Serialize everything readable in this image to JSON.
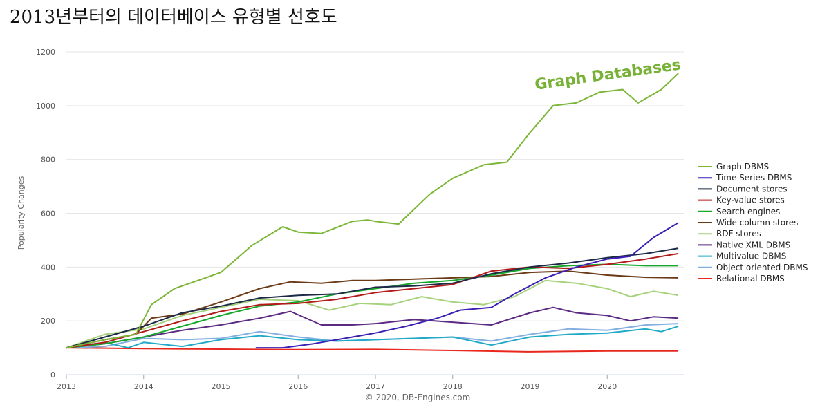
{
  "title": "2013년부터의 데이터베이스 유형별 선호도",
  "chart_data": {
    "type": "line",
    "title": "2013년부터의 데이터베이스 유형별 선호도",
    "xlabel": "",
    "ylabel": "Popularity Changes",
    "xlim": [
      2013,
      2021
    ],
    "ylim": [
      0,
      1200
    ],
    "x_ticks": [
      "2013",
      "2014",
      "2015",
      "2016",
      "2017",
      "2018",
      "2019",
      "2020"
    ],
    "y_ticks": [
      0,
      200,
      400,
      600,
      800,
      1000,
      1200
    ],
    "grid": "horizontal",
    "legend_position": "right",
    "annotation": "Graph Databases",
    "credit": "© 2020, DB-Engines.com",
    "series": [
      {
        "name": "Graph DBMS",
        "color": "#7cb637",
        "x": [
          2013,
          2013.5,
          2013.9,
          2014.1,
          2014.4,
          2014.8,
          2015.0,
          2015.4,
          2015.8,
          2016.0,
          2016.3,
          2016.7,
          2016.9,
          2017.0,
          2017.3,
          2017.7,
          2018.0,
          2018.4,
          2018.7,
          2019.0,
          2019.3,
          2019.6,
          2019.9,
          2020.2,
          2020.4,
          2020.7,
          2020.92
        ],
        "y": [
          100,
          130,
          150,
          260,
          320,
          360,
          380,
          480,
          550,
          530,
          525,
          570,
          575,
          570,
          560,
          670,
          730,
          780,
          790,
          900,
          1000,
          1010,
          1050,
          1060,
          1010,
          1060,
          1120
        ]
      },
      {
        "name": "Time Series DBMS",
        "color": "#3b1fb5",
        "x": [
          2015.45,
          2015.8,
          2016.2,
          2016.6,
          2017.0,
          2017.4,
          2017.8,
          2018.1,
          2018.5,
          2018.8,
          2019.2,
          2019.6,
          2020.0,
          2020.3,
          2020.6,
          2020.92
        ],
        "y": [
          100,
          100,
          115,
          135,
          155,
          180,
          210,
          240,
          250,
          300,
          360,
          400,
          430,
          440,
          510,
          565
        ]
      },
      {
        "name": "Document stores",
        "color": "#1c2a48",
        "x": [
          2013,
          2013.5,
          2014.0,
          2014.5,
          2015.0,
          2015.5,
          2016.0,
          2016.5,
          2017.0,
          2017.5,
          2018.0,
          2018.5,
          2019.0,
          2019.5,
          2020.0,
          2020.5,
          2020.92
        ],
        "y": [
          100,
          140,
          180,
          230,
          255,
          285,
          295,
          300,
          325,
          330,
          340,
          375,
          400,
          415,
          435,
          450,
          470
        ]
      },
      {
        "name": "Key-value stores",
        "color": "#b31b1b",
        "x": [
          2013,
          2013.5,
          2014.0,
          2014.5,
          2015.0,
          2015.5,
          2016.0,
          2016.5,
          2017.0,
          2017.5,
          2018.0,
          2018.5,
          2019.0,
          2019.5,
          2020.0,
          2020.5,
          2020.92
        ],
        "y": [
          100,
          120,
          160,
          200,
          235,
          260,
          265,
          280,
          305,
          320,
          335,
          385,
          400,
          395,
          410,
          430,
          450
        ]
      },
      {
        "name": "Search engines",
        "color": "#15a82b",
        "x": [
          2013,
          2013.5,
          2014.0,
          2014.5,
          2015.0,
          2015.5,
          2016.0,
          2016.5,
          2017.0,
          2017.5,
          2018.0,
          2018.5,
          2019.0,
          2019.5,
          2020.0,
          2020.5,
          2020.92
        ],
        "y": [
          100,
          115,
          140,
          180,
          220,
          255,
          270,
          300,
          320,
          340,
          350,
          370,
          395,
          405,
          410,
          405,
          405
        ]
      },
      {
        "name": "Wide column stores",
        "color": "#6b3a17",
        "x": [
          2013,
          2013.5,
          2013.9,
          2014.1,
          2014.5,
          2015.0,
          2015.5,
          2015.9,
          2016.3,
          2016.7,
          2017.0,
          2017.5,
          2018.0,
          2018.5,
          2019.0,
          2019.5,
          2020.0,
          2020.5,
          2020.92
        ],
        "y": [
          100,
          130,
          150,
          210,
          225,
          270,
          320,
          345,
          340,
          350,
          350,
          355,
          360,
          365,
          380,
          385,
          370,
          362,
          360
        ]
      },
      {
        "name": "RDF stores",
        "color": "#a7d27d",
        "x": [
          2013,
          2013.5,
          2014.0,
          2014.5,
          2015.0,
          2015.5,
          2016.0,
          2016.4,
          2016.8,
          2017.2,
          2017.6,
          2018.0,
          2018.4,
          2018.8,
          2019.2,
          2019.6,
          2020.0,
          2020.3,
          2020.6,
          2020.92
        ],
        "y": [
          100,
          150,
          170,
          220,
          250,
          280,
          275,
          240,
          265,
          260,
          290,
          270,
          260,
          290,
          350,
          340,
          320,
          290,
          310,
          295
        ]
      },
      {
        "name": "Native XML DBMS",
        "color": "#5b2a82",
        "x": [
          2013,
          2013.5,
          2014.0,
          2014.5,
          2015.0,
          2015.5,
          2015.9,
          2016.3,
          2016.7,
          2017.0,
          2017.5,
          2018.0,
          2018.5,
          2019.0,
          2019.3,
          2019.6,
          2020.0,
          2020.3,
          2020.6,
          2020.92
        ],
        "y": [
          100,
          115,
          140,
          165,
          185,
          210,
          235,
          185,
          185,
          190,
          205,
          195,
          185,
          230,
          250,
          230,
          220,
          200,
          215,
          210
        ]
      },
      {
        "name": "Multivalue DBMS",
        "color": "#23a9c8",
        "x": [
          2013,
          2013.5,
          2013.8,
          2014.0,
          2014.5,
          2015.0,
          2015.5,
          2016.0,
          2016.5,
          2017.0,
          2017.5,
          2018.0,
          2018.5,
          2019.0,
          2019.5,
          2020.0,
          2020.5,
          2020.7,
          2020.92
        ],
        "y": [
          100,
          120,
          100,
          120,
          105,
          130,
          145,
          130,
          125,
          130,
          135,
          140,
          110,
          140,
          150,
          155,
          170,
          160,
          180
        ]
      },
      {
        "name": "Object oriented DBMS",
        "color": "#82aee0",
        "x": [
          2013,
          2013.5,
          2014.0,
          2014.5,
          2015.0,
          2015.5,
          2016.0,
          2016.5,
          2017.0,
          2017.5,
          2018.0,
          2018.5,
          2019.0,
          2019.5,
          2020.0,
          2020.5,
          2020.92
        ],
        "y": [
          100,
          105,
          135,
          130,
          135,
          160,
          140,
          125,
          130,
          135,
          140,
          125,
          150,
          170,
          165,
          185,
          190
        ]
      },
      {
        "name": "Relational DBMS",
        "color": "#e8271e",
        "x": [
          2013,
          2014.0,
          2015.0,
          2016.0,
          2017.0,
          2018.0,
          2019.0,
          2020.0,
          2020.92
        ],
        "y": [
          100,
          97,
          95,
          93,
          94,
          90,
          85,
          88,
          88
        ]
      }
    ]
  }
}
